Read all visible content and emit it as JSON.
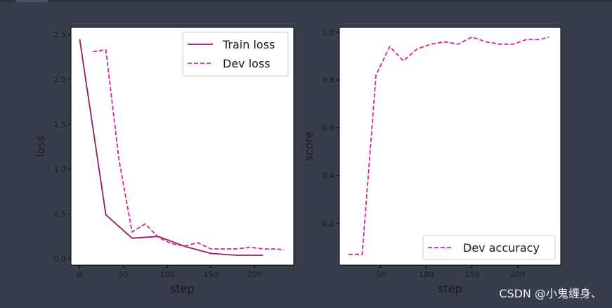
{
  "watermark": "CSDN @小鬼缠身、",
  "chart_data": [
    {
      "type": "line",
      "title": "",
      "xlabel": "step",
      "ylabel": "loss",
      "xlim": [
        -10,
        245
      ],
      "ylim": [
        -0.07,
        2.58
      ],
      "xticks": [
        0,
        50,
        100,
        150,
        200
      ],
      "xtick_labels": [
        "0",
        "50",
        "100",
        "150",
        "200"
      ],
      "yticks": [
        0.0,
        0.5,
        1.0,
        1.5,
        2.0,
        2.5
      ],
      "ytick_labels": [
        "0.0",
        "0.5",
        "1.0",
        "1.5",
        "2.0",
        "2.5"
      ],
      "grid": false,
      "legend_position": "top-right",
      "series": [
        {
          "name": "Train loss",
          "style": "solid",
          "color": "#9b1b5f",
          "x": [
            0,
            30,
            60,
            90,
            120,
            150,
            180,
            210
          ],
          "y": [
            2.45,
            0.49,
            0.23,
            0.25,
            0.14,
            0.06,
            0.04,
            0.04
          ]
        },
        {
          "name": "Dev loss",
          "style": "dashed",
          "color": "#e0218a",
          "x": [
            15,
            30,
            45,
            60,
            75,
            90,
            105,
            120,
            135,
            150,
            165,
            180,
            195,
            210,
            225,
            234
          ],
          "y": [
            2.31,
            2.33,
            1.1,
            0.3,
            0.39,
            0.24,
            0.17,
            0.14,
            0.18,
            0.11,
            0.11,
            0.11,
            0.13,
            0.11,
            0.11,
            0.1
          ]
        }
      ]
    },
    {
      "type": "line",
      "title": "",
      "xlabel": "step",
      "ylabel": "score",
      "xlim": [
        5,
        247
      ],
      "ylim": [
        0.025,
        1.02
      ],
      "xticks": [
        50,
        100,
        150,
        200
      ],
      "xtick_labels": [
        "50",
        "100",
        "150",
        "200"
      ],
      "yticks": [
        0.2,
        0.4,
        0.6,
        0.8,
        1.0
      ],
      "ytick_labels": [
        "0.2",
        "0.4",
        "0.6",
        "0.8",
        "1.0"
      ],
      "grid": false,
      "legend_position": "bottom-right",
      "series": [
        {
          "name": "Dev accuracy",
          "style": "dashed",
          "color": "#e0218a",
          "x": [
            15,
            30,
            45,
            60,
            75,
            90,
            105,
            120,
            135,
            150,
            165,
            180,
            195,
            210,
            225,
            234
          ],
          "y": [
            0.07,
            0.07,
            0.82,
            0.94,
            0.88,
            0.93,
            0.95,
            0.96,
            0.95,
            0.98,
            0.96,
            0.95,
            0.95,
            0.97,
            0.97,
            0.98
          ]
        }
      ]
    }
  ]
}
